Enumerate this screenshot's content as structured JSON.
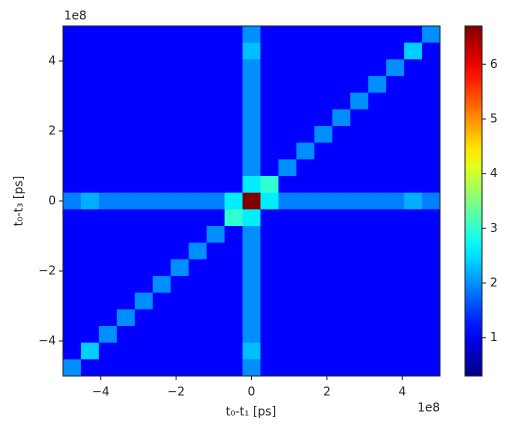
{
  "chart_data": {
    "type": "heatmap",
    "x_label": "t₀-t₁ [ps]",
    "y_label": "t₀-t₃ [ps]",
    "x_offset_label": "1e8",
    "y_offset_label": "1e8",
    "xlim": [
      -5,
      5
    ],
    "ylim": [
      -5,
      5
    ],
    "xticks": [
      {
        "value": -4,
        "label": "−4"
      },
      {
        "value": -2,
        "label": "−2"
      },
      0,
      2,
      4
    ],
    "yticks": [
      {
        "value": -4,
        "label": "−4"
      },
      {
        "value": -2,
        "label": "−2"
      },
      0,
      2,
      4
    ],
    "colormap": "jet",
    "zlim": [
      0.3,
      6.7
    ],
    "colorbar_ticks": [
      1,
      2,
      3,
      4,
      5,
      6
    ],
    "z": [
      [
        1.1,
        1.1,
        1.1,
        1.1,
        1.1,
        1.1,
        1.1,
        1.1,
        1.1,
        1.1,
        2.0,
        1.1,
        1.1,
        1.1,
        1.1,
        1.1,
        1.1,
        1.1,
        1.1,
        1.1,
        2.0
      ],
      [
        1.1,
        1.1,
        1.1,
        1.1,
        1.1,
        1.1,
        1.1,
        1.1,
        1.1,
        1.1,
        2.3,
        1.1,
        1.1,
        1.1,
        1.1,
        1.1,
        1.1,
        1.1,
        1.1,
        2.4,
        1.1
      ],
      [
        1.1,
        1.1,
        1.1,
        1.1,
        1.1,
        1.1,
        1.1,
        1.1,
        1.1,
        1.1,
        2.0,
        1.1,
        1.1,
        1.1,
        1.1,
        1.1,
        1.1,
        1.1,
        2.0,
        1.1,
        1.1
      ],
      [
        1.1,
        1.1,
        1.1,
        1.1,
        1.1,
        1.1,
        1.1,
        1.1,
        1.1,
        1.1,
        2.0,
        1.1,
        1.1,
        1.1,
        1.1,
        1.1,
        1.1,
        2.0,
        1.1,
        1.1,
        1.1
      ],
      [
        1.1,
        1.1,
        1.1,
        1.1,
        1.1,
        1.1,
        1.1,
        1.1,
        1.1,
        1.1,
        2.0,
        1.1,
        1.1,
        1.1,
        1.1,
        1.1,
        2.0,
        1.1,
        1.1,
        1.1,
        1.1
      ],
      [
        1.1,
        1.1,
        1.1,
        1.1,
        1.1,
        1.1,
        1.1,
        1.1,
        1.1,
        1.1,
        2.0,
        1.1,
        1.1,
        1.1,
        1.1,
        2.0,
        1.1,
        1.1,
        1.1,
        1.1,
        1.1
      ],
      [
        1.1,
        1.1,
        1.1,
        1.1,
        1.1,
        1.1,
        1.1,
        1.1,
        1.1,
        1.1,
        2.0,
        1.1,
        1.1,
        1.1,
        2.0,
        1.1,
        1.1,
        1.1,
        1.1,
        1.1,
        1.1
      ],
      [
        1.1,
        1.1,
        1.1,
        1.1,
        1.1,
        1.1,
        1.1,
        1.1,
        1.1,
        1.1,
        2.0,
        1.1,
        1.1,
        2.0,
        1.1,
        1.1,
        1.1,
        1.1,
        1.1,
        1.1,
        1.1
      ],
      [
        1.1,
        1.1,
        1.1,
        1.1,
        1.1,
        1.1,
        1.1,
        1.1,
        1.1,
        1.1,
        2.0,
        1.1,
        2.0,
        1.1,
        1.1,
        1.1,
        1.1,
        1.1,
        1.1,
        1.1,
        1.1
      ],
      [
        1.1,
        1.1,
        1.1,
        1.1,
        1.1,
        1.1,
        1.1,
        1.1,
        1.1,
        1.1,
        2.6,
        3.0,
        1.1,
        1.1,
        1.1,
        1.1,
        1.1,
        1.1,
        1.1,
        1.1,
        1.1
      ],
      [
        1.9,
        2.2,
        1.9,
        1.9,
        1.9,
        1.9,
        1.9,
        1.9,
        1.9,
        2.6,
        6.7,
        2.6,
        1.9,
        1.9,
        1.9,
        1.9,
        1.9,
        1.9,
        1.9,
        2.2,
        1.9
      ],
      [
        1.1,
        1.1,
        1.1,
        1.1,
        1.1,
        1.1,
        1.1,
        1.1,
        1.1,
        3.0,
        2.6,
        1.1,
        1.1,
        1.1,
        1.1,
        1.1,
        1.1,
        1.1,
        1.1,
        1.1,
        1.1
      ],
      [
        1.1,
        1.1,
        1.1,
        1.1,
        1.1,
        1.1,
        1.1,
        1.1,
        2.0,
        1.1,
        2.0,
        1.1,
        1.1,
        1.1,
        1.1,
        1.1,
        1.1,
        1.1,
        1.1,
        1.1,
        1.1
      ],
      [
        1.1,
        1.1,
        1.1,
        1.1,
        1.1,
        1.1,
        1.1,
        2.0,
        1.1,
        1.1,
        2.0,
        1.1,
        1.1,
        1.1,
        1.1,
        1.1,
        1.1,
        1.1,
        1.1,
        1.1,
        1.1
      ],
      [
        1.1,
        1.1,
        1.1,
        1.1,
        1.1,
        1.1,
        2.0,
        1.1,
        1.1,
        1.1,
        2.0,
        1.1,
        1.1,
        1.1,
        1.1,
        1.1,
        1.1,
        1.1,
        1.1,
        1.1,
        1.1
      ],
      [
        1.1,
        1.1,
        1.1,
        1.1,
        1.1,
        2.0,
        1.1,
        1.1,
        1.1,
        1.1,
        2.0,
        1.1,
        1.1,
        1.1,
        1.1,
        1.1,
        1.1,
        1.1,
        1.1,
        1.1,
        1.1
      ],
      [
        1.1,
        1.1,
        1.1,
        1.1,
        2.0,
        1.1,
        1.1,
        1.1,
        1.1,
        1.1,
        2.0,
        1.1,
        1.1,
        1.1,
        1.1,
        1.1,
        1.1,
        1.1,
        1.1,
        1.1,
        1.1
      ],
      [
        1.1,
        1.1,
        1.1,
        2.0,
        1.1,
        1.1,
        1.1,
        1.1,
        1.1,
        1.1,
        2.0,
        1.1,
        1.1,
        1.1,
        1.1,
        1.1,
        1.1,
        1.1,
        1.1,
        1.1,
        1.1
      ],
      [
        1.1,
        1.1,
        2.0,
        1.1,
        1.1,
        1.1,
        1.1,
        1.1,
        1.1,
        1.1,
        2.0,
        1.1,
        1.1,
        1.1,
        1.1,
        1.1,
        1.1,
        1.1,
        1.1,
        1.1,
        1.1
      ],
      [
        1.1,
        2.4,
        1.1,
        1.1,
        1.1,
        1.1,
        1.1,
        1.1,
        1.1,
        1.1,
        2.3,
        1.1,
        1.1,
        1.1,
        1.1,
        1.1,
        1.1,
        1.1,
        1.1,
        1.1,
        1.1
      ],
      [
        2.0,
        1.1,
        1.1,
        1.1,
        1.1,
        1.1,
        1.1,
        1.1,
        1.1,
        1.1,
        2.0,
        1.1,
        1.1,
        1.1,
        1.1,
        1.1,
        1.1,
        1.1,
        1.1,
        1.1,
        1.1
      ]
    ]
  }
}
